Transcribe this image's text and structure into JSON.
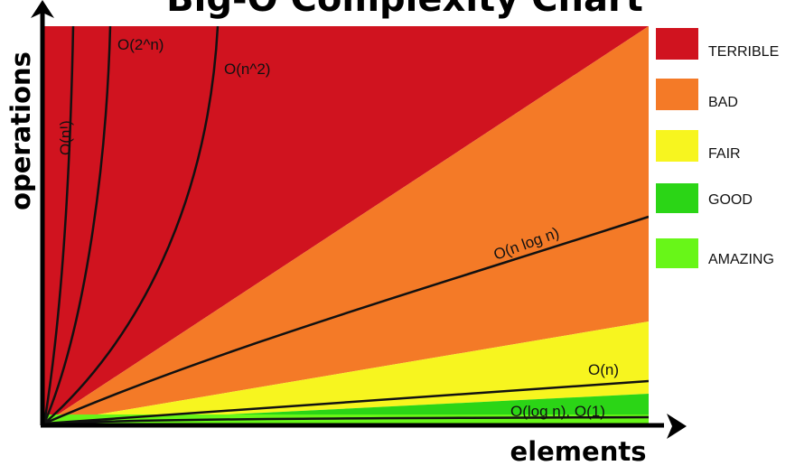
{
  "chart_data": {
    "type": "area",
    "title": "Big-O Complexity Chart",
    "xlabel": "elements",
    "ylabel": "operations",
    "regions": [
      {
        "name": "TERRIBLE",
        "color": "#d0131f"
      },
      {
        "name": "BAD",
        "color": "#f47a27"
      },
      {
        "name": "FAIR",
        "color": "#f7f51f"
      },
      {
        "name": "GOOD",
        "color": "#2bd516"
      },
      {
        "name": "AMAZING",
        "color": "#68f618"
      }
    ],
    "curves": [
      {
        "name": "O(n!)"
      },
      {
        "name": "O(2^n)"
      },
      {
        "name": "O(n^2)"
      },
      {
        "name": "O(n log n)"
      },
      {
        "name": "O(n)"
      },
      {
        "name": "O(log n), O(1)"
      }
    ],
    "legend_position": "right",
    "grid": false
  }
}
